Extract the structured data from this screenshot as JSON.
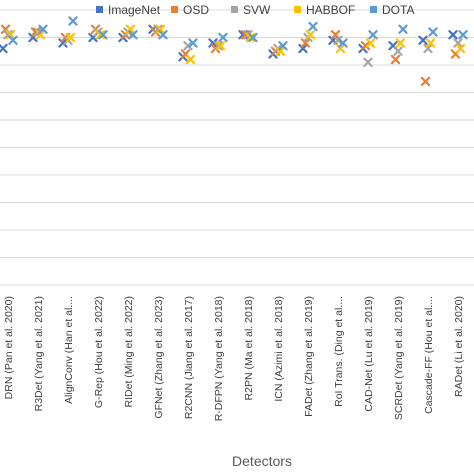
{
  "chart_data": {
    "type": "scatter",
    "title": "",
    "xlabel": "Detectors",
    "ylabel": "",
    "categories": [
      "DRN (Pan et al. 2020)",
      "R3Det (Yang et al. 2021)",
      "AlignConv (Han et al....",
      "G-Rep (Hou et al. 2022)",
      "RIDet (Ming et al. 2022)",
      "GFNet (Zhang et al. 2023)",
      "R2CNN (Jiang et al. 2017)",
      "R-DFPN (Yang et al. 2018)",
      "R2PN (Ma et al. 2018)",
      "ICN (Azimi et al. 2018)",
      "FADet (Zhang et al. 2019)",
      "RoI Trans. (Ding et al....",
      "CAD-Net (Lu et al. 2019)",
      "SCRDet (Yang et al. 2019)",
      "Cascade-FF (Hou et al....",
      "RADet (Li et al. 2020)"
    ],
    "ylim": [
      0,
      100
    ],
    "grid": true,
    "legend_position": "top",
    "series": [
      {
        "name": "ImageNet",
        "color": "#4472C4",
        "values": [
          86,
          90,
          88,
          90,
          90,
          93,
          83,
          88,
          91,
          84,
          86,
          89,
          86,
          87,
          89,
          91
        ]
      },
      {
        "name": "OSD",
        "color": "#ED7D31",
        "values": [
          93,
          92,
          90,
          93,
          91,
          92,
          84,
          86,
          91,
          85,
          88,
          91,
          87,
          82,
          74,
          84
        ]
      },
      {
        "name": "SVW",
        "color": "#A5A5A5",
        "values": [
          91,
          92,
          89,
          92,
          92,
          93,
          87,
          87,
          91,
          86,
          90,
          89,
          81,
          85,
          86,
          88
        ]
      },
      {
        "name": "HABBOF",
        "color": "#FFC000",
        "values": [
          91,
          91,
          90,
          91,
          93,
          93,
          82,
          87,
          90,
          85,
          91,
          86,
          88,
          88,
          88,
          86
        ]
      },
      {
        "name": "DOTA",
        "color": "#5B9BD5",
        "values": [
          89,
          93,
          96,
          91,
          91,
          91,
          88,
          90,
          90,
          87,
          94,
          88,
          91,
          93,
          92,
          91
        ]
      }
    ]
  }
}
